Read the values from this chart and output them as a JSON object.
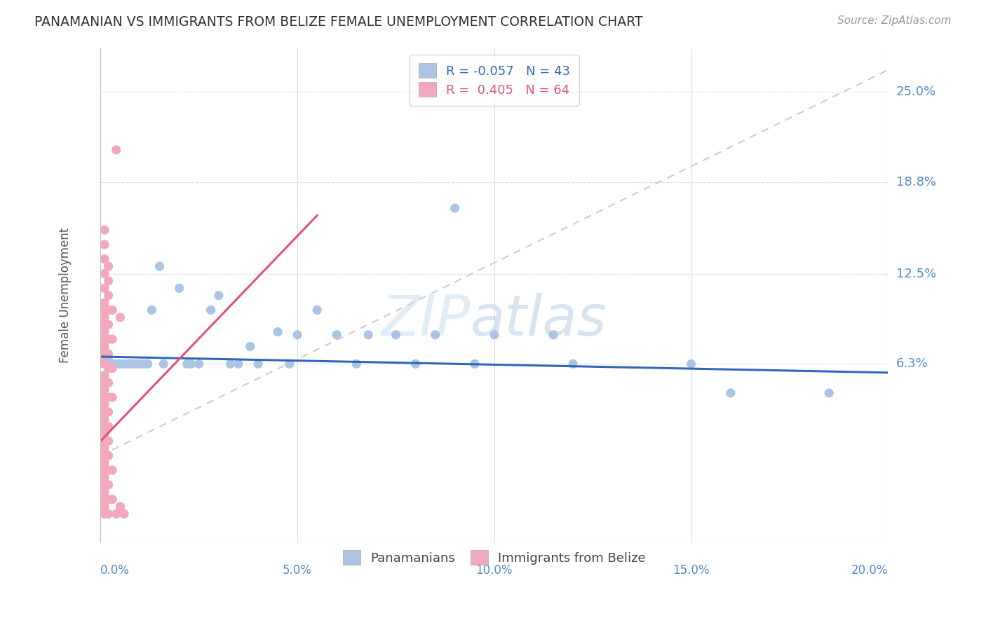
{
  "title": "PANAMANIAN VS IMMIGRANTS FROM BELIZE FEMALE UNEMPLOYMENT CORRELATION CHART",
  "source": "Source: ZipAtlas.com",
  "ylabel": "Female Unemployment",
  "ytick_labels": [
    "6.3%",
    "12.5%",
    "18.8%",
    "25.0%"
  ],
  "ytick_values": [
    0.063,
    0.125,
    0.188,
    0.25
  ],
  "xtick_labels": [
    "0.0%",
    "5.0%",
    "10.0%",
    "15.0%",
    "20.0%"
  ],
  "xtick_values": [
    0.0,
    0.05,
    0.1,
    0.15,
    0.2
  ],
  "xmin": 0.0,
  "xmax": 0.2,
  "ymin": -0.06,
  "ymax": 0.28,
  "watermark_zip": "ZIP",
  "watermark_atlas": "atlas",
  "legend_blue_label": "Panamanians",
  "legend_pink_label": "Immigrants from Belize",
  "R_blue": -0.057,
  "N_blue": 43,
  "R_pink": 0.405,
  "N_pink": 64,
  "blue_color": "#aac4e2",
  "pink_color": "#f2a8bc",
  "blue_line_color": "#3366bb",
  "pink_line_color": "#dd5577",
  "diagonal_color": "#cccccc",
  "blue_scatter": [
    [
      0.001,
      0.068
    ],
    [
      0.002,
      0.066
    ],
    [
      0.003,
      0.063
    ],
    [
      0.004,
      0.063
    ],
    [
      0.005,
      0.063
    ],
    [
      0.006,
      0.063
    ],
    [
      0.007,
      0.063
    ],
    [
      0.008,
      0.063
    ],
    [
      0.009,
      0.063
    ],
    [
      0.01,
      0.063
    ],
    [
      0.011,
      0.063
    ],
    [
      0.012,
      0.063
    ],
    [
      0.013,
      0.1
    ],
    [
      0.015,
      0.13
    ],
    [
      0.016,
      0.063
    ],
    [
      0.02,
      0.115
    ],
    [
      0.022,
      0.063
    ],
    [
      0.023,
      0.063
    ],
    [
      0.025,
      0.063
    ],
    [
      0.028,
      0.1
    ],
    [
      0.03,
      0.11
    ],
    [
      0.033,
      0.063
    ],
    [
      0.035,
      0.063
    ],
    [
      0.038,
      0.075
    ],
    [
      0.04,
      0.063
    ],
    [
      0.045,
      0.085
    ],
    [
      0.048,
      0.063
    ],
    [
      0.05,
      0.083
    ],
    [
      0.055,
      0.1
    ],
    [
      0.06,
      0.083
    ],
    [
      0.065,
      0.063
    ],
    [
      0.068,
      0.083
    ],
    [
      0.075,
      0.083
    ],
    [
      0.08,
      0.063
    ],
    [
      0.085,
      0.083
    ],
    [
      0.09,
      0.17
    ],
    [
      0.095,
      0.063
    ],
    [
      0.1,
      0.083
    ],
    [
      0.115,
      0.083
    ],
    [
      0.12,
      0.063
    ],
    [
      0.15,
      0.063
    ],
    [
      0.16,
      0.043
    ],
    [
      0.185,
      0.043
    ]
  ],
  "pink_scatter": [
    [
      0.001,
      0.155
    ],
    [
      0.001,
      0.145
    ],
    [
      0.001,
      0.135
    ],
    [
      0.001,
      0.125
    ],
    [
      0.001,
      0.115
    ],
    [
      0.001,
      0.105
    ],
    [
      0.001,
      0.1
    ],
    [
      0.001,
      0.095
    ],
    [
      0.001,
      0.09
    ],
    [
      0.001,
      0.085
    ],
    [
      0.001,
      0.08
    ],
    [
      0.001,
      0.075
    ],
    [
      0.001,
      0.07
    ],
    [
      0.001,
      0.065
    ],
    [
      0.001,
      0.063
    ],
    [
      0.001,
      0.055
    ],
    [
      0.001,
      0.05
    ],
    [
      0.001,
      0.045
    ],
    [
      0.001,
      0.04
    ],
    [
      0.001,
      0.035
    ],
    [
      0.001,
      0.03
    ],
    [
      0.001,
      0.025
    ],
    [
      0.001,
      0.02
    ],
    [
      0.001,
      0.015
    ],
    [
      0.001,
      0.01
    ],
    [
      0.001,
      0.005
    ],
    [
      0.001,
      0.0
    ],
    [
      0.001,
      -0.005
    ],
    [
      0.001,
      -0.01
    ],
    [
      0.001,
      -0.015
    ],
    [
      0.001,
      -0.02
    ],
    [
      0.001,
      -0.025
    ],
    [
      0.001,
      -0.03
    ],
    [
      0.001,
      -0.035
    ],
    [
      0.001,
      -0.04
    ],
    [
      0.002,
      0.13
    ],
    [
      0.002,
      0.12
    ],
    [
      0.002,
      0.11
    ],
    [
      0.002,
      0.1
    ],
    [
      0.002,
      0.09
    ],
    [
      0.002,
      0.08
    ],
    [
      0.002,
      0.07
    ],
    [
      0.002,
      0.06
    ],
    [
      0.002,
      0.05
    ],
    [
      0.002,
      0.04
    ],
    [
      0.002,
      0.03
    ],
    [
      0.002,
      0.02
    ],
    [
      0.002,
      0.01
    ],
    [
      0.002,
      0.0
    ],
    [
      0.002,
      -0.01
    ],
    [
      0.002,
      -0.02
    ],
    [
      0.002,
      -0.03
    ],
    [
      0.002,
      -0.04
    ],
    [
      0.003,
      0.1
    ],
    [
      0.003,
      0.08
    ],
    [
      0.003,
      0.06
    ],
    [
      0.003,
      0.04
    ],
    [
      0.003,
      -0.01
    ],
    [
      0.003,
      -0.03
    ],
    [
      0.004,
      0.21
    ],
    [
      0.004,
      -0.04
    ],
    [
      0.005,
      0.095
    ],
    [
      0.005,
      -0.035
    ],
    [
      0.006,
      -0.04
    ]
  ],
  "blue_line": [
    [
      0.0,
      0.068
    ],
    [
      0.2,
      0.057
    ]
  ],
  "pink_line": [
    [
      0.0,
      0.01
    ],
    [
      0.055,
      0.165
    ]
  ],
  "diag_line": [
    [
      0.0,
      0.0
    ],
    [
      0.2,
      0.265
    ]
  ]
}
